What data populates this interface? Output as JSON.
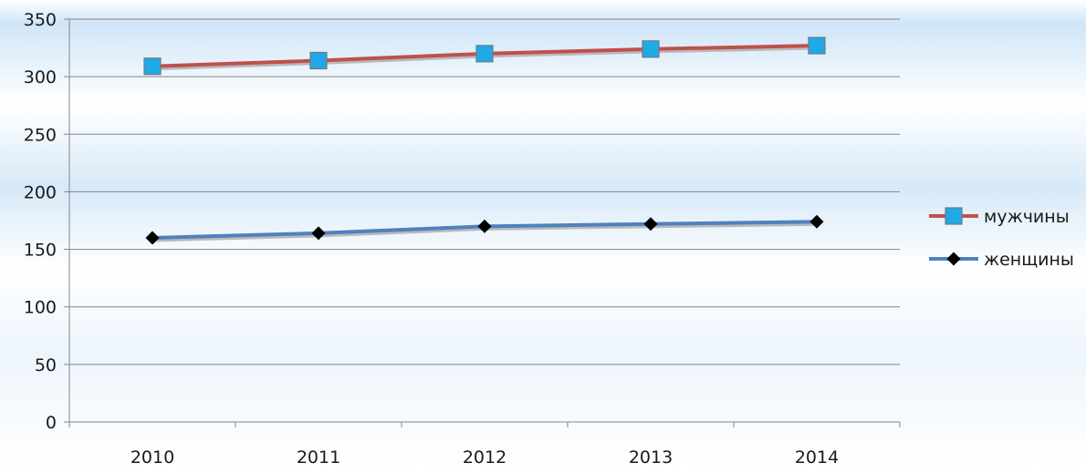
{
  "chart_data": {
    "type": "line",
    "title": "",
    "xlabel": "",
    "ylabel": "",
    "categories": [
      "2010",
      "2011",
      "2012",
      "2013",
      "2014"
    ],
    "ylim": [
      0,
      350
    ],
    "yticks": [
      0,
      50,
      100,
      150,
      200,
      250,
      300,
      350
    ],
    "grid": true,
    "legend_position": "right",
    "series": [
      {
        "name": "мужчины",
        "values": [
          309,
          314,
          320,
          324,
          327
        ],
        "line_color": "#c0504d",
        "marker": "square",
        "marker_color": "#1fa9e6"
      },
      {
        "name": "женщины",
        "values": [
          160,
          164,
          170,
          172,
          174
        ],
        "line_color": "#4f81bd",
        "marker": "diamond",
        "marker_color": "#000000"
      }
    ]
  }
}
